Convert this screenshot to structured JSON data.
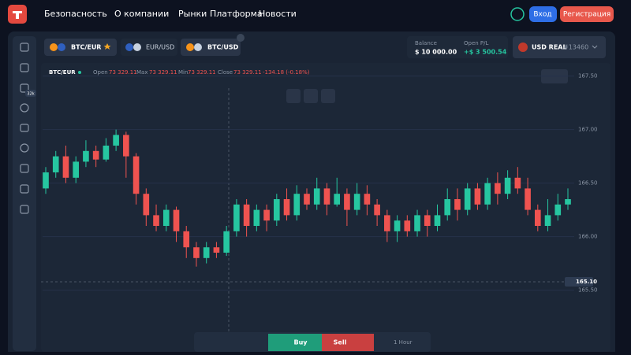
{
  "header": {
    "nav": [
      "Безопасность",
      "О компании",
      "Рынки",
      "Платформа",
      "Новости"
    ],
    "login": "Вход",
    "register": "Регистрация"
  },
  "sidebar": {
    "badge": "32k"
  },
  "tabs": [
    "BTC/EUR",
    "EUR/USD",
    "BTC/USD"
  ],
  "account": {
    "balance_label": "Balance",
    "balance": "$ 10 000.00",
    "pl_label": "Open P/L",
    "pl": "+$ 3 500.54",
    "currency": "USD REAL",
    "account_id": "#13460"
  },
  "info": {
    "symbol": "BTC/EUR",
    "open_label": "Open",
    "open": "73 329.11",
    "max_label": "Max",
    "max": "73 329.11",
    "min_label": "Min",
    "min": "73 329.11",
    "close_label": "Close",
    "close": "73 329.11",
    "change": "-134.18 (-0.18%)"
  },
  "crosshair_label": "165.10",
  "toolbar": {
    "buy": "Buy",
    "sell": "Sell",
    "interval": "1 Hour"
  },
  "chart_data": {
    "type": "candlestick",
    "up_color": "#26c6a0",
    "down_color": "#ef5350",
    "ylim": [
      165.1,
      167.6
    ],
    "yticks": [
      {
        "value": 165.5,
        "label": "165.50"
      },
      {
        "value": 166,
        "label": "166.00"
      },
      {
        "value": 166.5,
        "label": "166.50"
      },
      {
        "value": 167,
        "label": "167.00"
      },
      {
        "value": 167.5,
        "label": "167.50"
      }
    ],
    "open": [
      166.45,
      166.6,
      166.75,
      166.55,
      166.7,
      166.8,
      166.72,
      166.85,
      166.95,
      166.75,
      166.4,
      166.2,
      166.1,
      166.25,
      166.05,
      165.9,
      165.8,
      165.9,
      165.85,
      166.05,
      166.3,
      166.1,
      166.25,
      166.15,
      166.35,
      166.2,
      166.4,
      166.3,
      166.45,
      166.3,
      166.4,
      166.25,
      166.4,
      166.3,
      166.2,
      166.05,
      166.15,
      166.05,
      166.2,
      166.1,
      166.2,
      166.35,
      166.25,
      166.45,
      166.3,
      166.5,
      166.4,
      166.55,
      166.45,
      166.25,
      166.1,
      166.2,
      166.3
    ],
    "high": [
      166.65,
      166.8,
      166.85,
      166.75,
      166.9,
      166.85,
      166.92,
      167,
      166.98,
      166.78,
      166.45,
      166.3,
      166.3,
      166.28,
      166.1,
      165.95,
      165.95,
      165.95,
      166.1,
      166.35,
      166.35,
      166.3,
      166.3,
      166.4,
      166.45,
      166.48,
      166.45,
      166.55,
      166.5,
      166.55,
      166.45,
      166.5,
      166.48,
      166.35,
      166.25,
      166.2,
      166.2,
      166.25,
      166.25,
      166.3,
      166.45,
      166.45,
      166.5,
      166.5,
      166.55,
      166.6,
      166.62,
      166.65,
      166.55,
      166.3,
      166.35,
      166.4,
      166.45
    ],
    "low": [
      166.4,
      166.55,
      166.5,
      166.5,
      166.65,
      166.65,
      166.7,
      166.8,
      166.55,
      166.3,
      166.1,
      166.05,
      166.05,
      165.95,
      165.8,
      165.72,
      165.75,
      165.8,
      165.82,
      166,
      166,
      166.05,
      166.05,
      166.1,
      166.15,
      166.15,
      166.25,
      166.25,
      166.2,
      166.28,
      166.1,
      166.2,
      166.2,
      166.1,
      165.95,
      165.95,
      166,
      166,
      166,
      166.05,
      166.15,
      166.15,
      166.2,
      166.25,
      166.25,
      166.3,
      166.35,
      166.4,
      166.2,
      166.05,
      166.05,
      166.15,
      166.25
    ],
    "close": [
      166.6,
      166.75,
      166.55,
      166.7,
      166.8,
      166.72,
      166.85,
      166.95,
      166.75,
      166.4,
      166.2,
      166.1,
      166.25,
      166.05,
      165.9,
      165.8,
      165.9,
      165.85,
      166.05,
      166.3,
      166.1,
      166.25,
      166.15,
      166.35,
      166.2,
      166.4,
      166.3,
      166.45,
      166.3,
      166.4,
      166.25,
      166.4,
      166.3,
      166.2,
      166.05,
      166.15,
      166.05,
      166.2,
      166.1,
      166.2,
      166.35,
      166.25,
      166.45,
      166.3,
      166.5,
      166.4,
      166.55,
      166.45,
      166.25,
      166.1,
      166.2,
      166.3,
      166.35
    ]
  }
}
